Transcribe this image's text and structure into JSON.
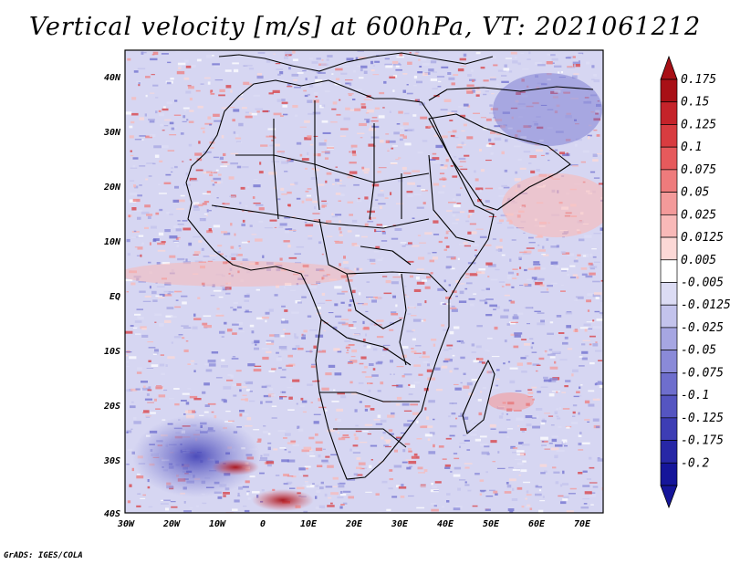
{
  "title": "Vertical velocity [m/s] at 600hPa, VT: 2021061212",
  "credit": "GrADS: IGES/COLA",
  "latitude_ticks": [
    "40N",
    "30N",
    "20N",
    "10N",
    "EQ",
    "10S",
    "20S",
    "30S",
    "40S"
  ],
  "longitude_ticks": [
    "30W",
    "20W",
    "10W",
    "0",
    "10E",
    "20E",
    "30E",
    "40E",
    "50E",
    "60E",
    "70E"
  ],
  "colorbar": {
    "labels": [
      "0.175",
      "0.15",
      "0.125",
      "0.1",
      "0.075",
      "0.05",
      "0.025",
      "0.0125",
      "0.005",
      "-0.005",
      "-0.0125",
      "-0.025",
      "-0.05",
      "-0.075",
      "-0.1",
      "-0.125",
      "-0.175",
      "-0.2"
    ],
    "colors": [
      "#a81016",
      "#c5232a",
      "#d83c40",
      "#e65a5c",
      "#ee7b7c",
      "#f39a9a",
      "#f8b9b8",
      "#fcd8d6",
      "#ffffff",
      "#dcdcf4",
      "#c3c3ec",
      "#a6a6e2",
      "#8a8ad8",
      "#6e6ecd",
      "#5555c1",
      "#3d3db4",
      "#2727a6",
      "#15159a"
    ]
  }
}
